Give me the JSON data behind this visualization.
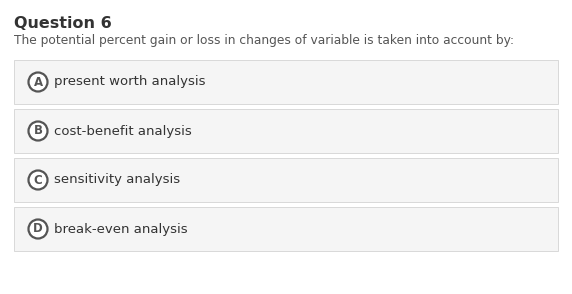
{
  "title": "Question 6",
  "question": "The potential percent gain or loss in changes of variable is taken into account by:",
  "options": [
    {
      "label": "A",
      "text": "present worth analysis"
    },
    {
      "label": "B",
      "text": "cost-benefit analysis"
    },
    {
      "label": "C",
      "text": "sensitivity analysis"
    },
    {
      "label": "D",
      "text": "break-even analysis"
    }
  ],
  "bg_color": "#ffffff",
  "option_bg_color": "#f5f5f5",
  "option_border_color": "#d8d8d8",
  "title_color": "#333333",
  "question_color": "#555555",
  "option_text_color": "#333333",
  "circle_edge_color": "#555555",
  "circle_face_color": "#ffffff",
  "title_fontsize": 11.5,
  "question_fontsize": 8.8,
  "option_fontsize": 9.5,
  "label_fontsize": 8.5,
  "fig_width": 5.72,
  "fig_height": 2.94,
  "dpi": 100
}
